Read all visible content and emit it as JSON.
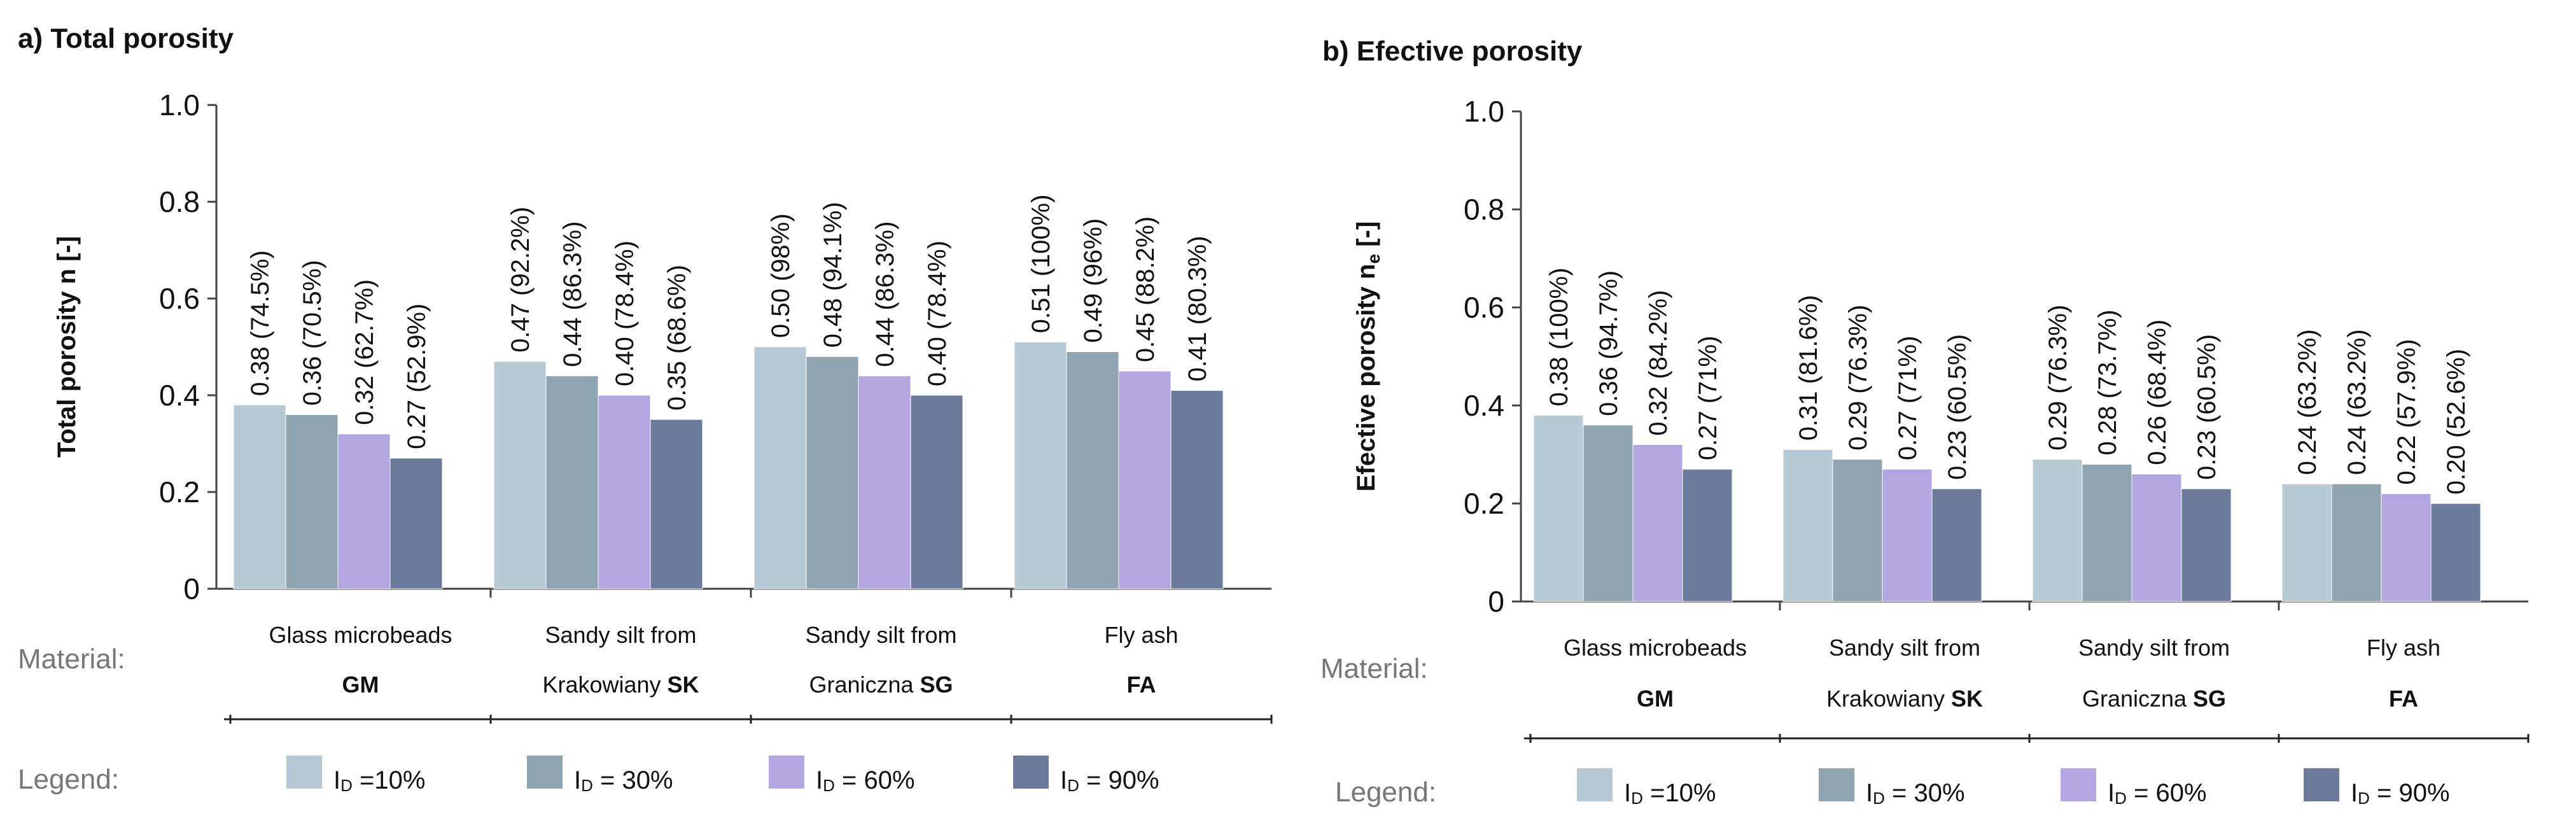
{
  "chart_data": [
    {
      "type": "bar",
      "title": "a) Total porosity",
      "ylabel": "Total porosity n [-]",
      "ylim": [
        0,
        1.0
      ],
      "yticks": [
        "0",
        "0.2",
        "0.4",
        "0.6",
        "0.8",
        "1.0"
      ],
      "material_label": "Material:",
      "legend_label": "Legend:",
      "categories": [
        {
          "line1": "Glass microbeads",
          "line2_prefix": "",
          "code": "GM"
        },
        {
          "line1": "Sandy silt from",
          "line2_prefix": "Krakowiany ",
          "code": "SK"
        },
        {
          "line1": "Sandy silt from",
          "line2_prefix": "Graniczna ",
          "code": "SG"
        },
        {
          "line1": "Fly ash",
          "line2_prefix": "",
          "code": "FA"
        }
      ],
      "series": [
        {
          "name": "ID =10%",
          "legend_sub": "D",
          "legend_rest": " =10%",
          "color": "#b8c9d6",
          "values": [
            0.38,
            0.47,
            0.5,
            0.51
          ],
          "labels": [
            "0.38 (74.5%)",
            "0.47 (92.2%)",
            "0.50 (98%)",
            "0.51 (100%)"
          ]
        },
        {
          "name": "ID = 30%",
          "legend_sub": "D",
          "legend_rest": " = 30%",
          "color": "#8fa3b0",
          "values": [
            0.36,
            0.44,
            0.48,
            0.49
          ],
          "labels": [
            "0.36 (70.5%)",
            "0.44 (86.3%)",
            "0.48 (94.1%)",
            "0.49 (96%)"
          ]
        },
        {
          "name": "ID = 60%",
          "legend_sub": "D",
          "legend_rest": " = 60%",
          "color": "#b3a6e0",
          "values": [
            0.32,
            0.4,
            0.44,
            0.45
          ],
          "labels": [
            "0.32 (62.7%)",
            "0.40 (78.4%)",
            "0.44 (86.3%)",
            "0.45 (88.2%)"
          ]
        },
        {
          "name": "ID = 90%",
          "legend_sub": "D",
          "legend_rest": " = 90%",
          "color": "#6b7a9a",
          "values": [
            0.27,
            0.35,
            0.4,
            0.41
          ],
          "labels": [
            "0.27 (52.9%)",
            "0.35 (68.6%)",
            "0.40 (78.4%)",
            "0.41 (80.3%)"
          ]
        }
      ]
    },
    {
      "type": "bar",
      "title": "b) Efective porosity",
      "ylabel": "Efective porosity n",
      "ylabel_sub": "e",
      "ylabel_suffix": " [-]",
      "ylim": [
        0,
        1.0
      ],
      "yticks": [
        "0",
        "0.2",
        "0.4",
        "0.6",
        "0.8",
        "1.0"
      ],
      "material_label": "Material:",
      "legend_label": "Legend:",
      "categories": [
        {
          "line1": "Glass microbeads",
          "line2_prefix": "",
          "code": "GM"
        },
        {
          "line1": "Sandy silt from",
          "line2_prefix": "Krakowiany ",
          "code": "SK"
        },
        {
          "line1": "Sandy silt from",
          "line2_prefix": "Graniczna ",
          "code": "SG"
        },
        {
          "line1": "Fly ash",
          "line2_prefix": "",
          "code": "FA"
        }
      ],
      "series": [
        {
          "name": "ID =10%",
          "legend_sub": "D",
          "legend_rest": " =10%",
          "color": "#b8c9d6",
          "values": [
            0.38,
            0.31,
            0.29,
            0.24
          ],
          "labels": [
            "0.38 (100%)",
            "0.31 (81.6%)",
            "0.29 (76.3%)",
            "0.24 (63.2%)"
          ]
        },
        {
          "name": "ID = 30%",
          "legend_sub": "D",
          "legend_rest": " = 30%",
          "color": "#8fa3b0",
          "values": [
            0.36,
            0.29,
            0.28,
            0.24
          ],
          "labels": [
            "0.36 (94.7%)",
            "0.29 (76.3%)",
            "0.28 (73.7%)",
            "0.24 (63.2%)"
          ]
        },
        {
          "name": "ID = 60%",
          "legend_sub": "D",
          "legend_rest": " = 60%",
          "color": "#b3a6e0",
          "values": [
            0.32,
            0.27,
            0.26,
            0.22
          ],
          "labels": [
            "0.32 (84.2%)",
            "0.27 (71%)",
            "0.26 (68.4%)",
            "0.22 (57.9%)"
          ]
        },
        {
          "name": "ID = 90%",
          "legend_sub": "D",
          "legend_rest": " = 90%",
          "color": "#6b7a9a",
          "values": [
            0.27,
            0.23,
            0.23,
            0.2
          ],
          "labels": [
            "0.27 (71%)",
            "0.23 (60.5%)",
            "0.23 (60.5%)",
            "0.20 (52.6%)"
          ]
        }
      ]
    }
  ]
}
